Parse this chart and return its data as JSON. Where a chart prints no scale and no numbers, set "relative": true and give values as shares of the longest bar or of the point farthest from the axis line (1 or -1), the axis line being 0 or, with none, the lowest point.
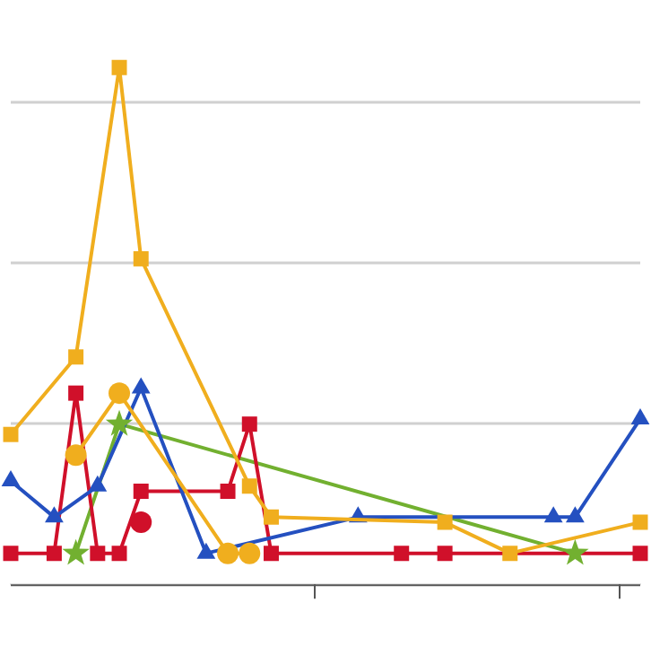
{
  "chart_data": {
    "type": "line",
    "relative": true,
    "grid": "y",
    "legend": false,
    "categories": [
      null,
      null,
      null,
      null,
      null,
      null,
      null,
      null,
      null,
      null,
      null,
      null,
      null,
      null,
      null,
      null,
      null,
      null,
      null,
      null,
      null,
      null,
      null,
      null,
      null,
      null,
      null,
      null,
      null,
      null
    ],
    "series": [
      {
        "color": "#f0ae1e",
        "marker": "square",
        "values": [
          0.29,
          null,
          null,
          0.44,
          null,
          1,
          0.63,
          null,
          null,
          null,
          null,
          0.19,
          0.13,
          null,
          null,
          null,
          null,
          null,
          null,
          null,
          0.12,
          null,
          null,
          0.06,
          null,
          null,
          null,
          null,
          null,
          0.12
        ]
      },
      {
        "color": "#f0ae1e",
        "marker": "circle",
        "values": [
          null,
          null,
          null,
          0.25,
          null,
          0.37,
          null,
          null,
          null,
          null,
          0.06,
          0.06,
          null,
          null,
          null,
          null,
          null,
          null,
          null,
          null,
          null,
          null,
          null,
          null,
          null,
          null,
          null,
          null,
          null,
          null
        ]
      },
      {
        "color": "#2450c0",
        "marker": "triangle",
        "values": [
          0.2,
          null,
          0.13,
          null,
          0.19,
          null,
          0.38,
          null,
          null,
          0.06,
          null,
          null,
          null,
          null,
          null,
          null,
          0.13,
          null,
          null,
          null,
          null,
          null,
          null,
          null,
          null,
          0.13,
          0.13,
          null,
          null,
          0.32
        ]
      },
      {
        "color": "#d0102a",
        "marker": "square",
        "values": [
          0.06,
          null,
          0.06,
          0.37,
          0.06,
          0.06,
          0.18,
          null,
          null,
          null,
          0.18,
          0.31,
          0.06,
          null,
          null,
          null,
          null,
          null,
          0.06,
          null,
          0.06,
          null,
          null,
          null,
          null,
          null,
          null,
          null,
          null,
          0.06
        ]
      },
      {
        "color": "#d0102a",
        "marker": "circle",
        "values": [
          null,
          null,
          null,
          null,
          null,
          null,
          0.12,
          null,
          null,
          null,
          null,
          null,
          null,
          null,
          null,
          null,
          null,
          null,
          null,
          null,
          null,
          null,
          null,
          null,
          null,
          null,
          null,
          null,
          null,
          null
        ]
      },
      {
        "color": "#72b030",
        "marker": "star",
        "values": [
          null,
          null,
          null,
          0.06,
          null,
          0.31,
          null,
          null,
          null,
          null,
          null,
          null,
          null,
          null,
          null,
          null,
          null,
          null,
          null,
          null,
          null,
          null,
          null,
          null,
          null,
          null,
          0.06,
          null,
          null,
          null
        ]
      }
    ]
  }
}
